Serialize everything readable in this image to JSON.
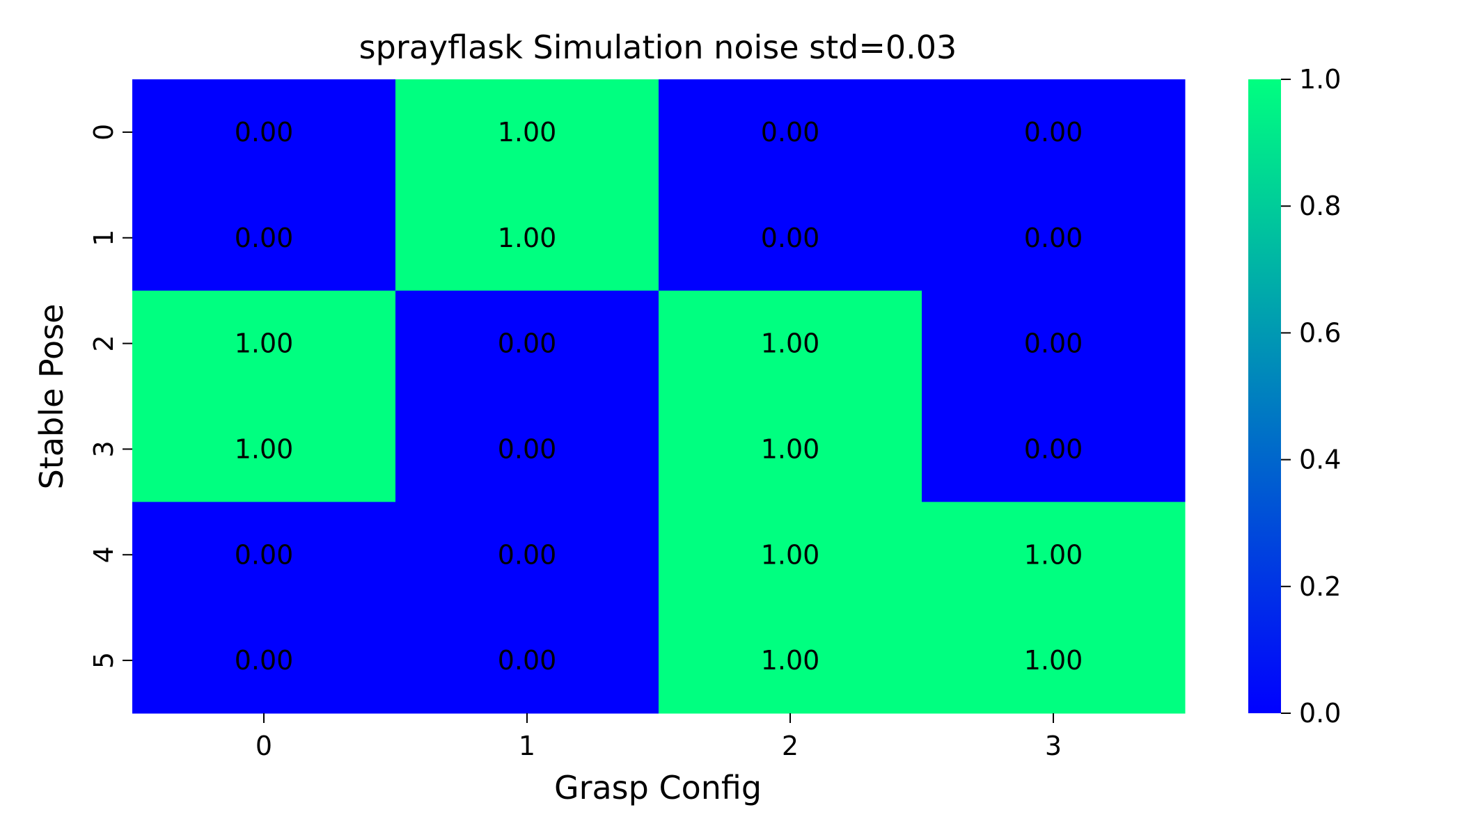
{
  "chart_data": {
    "type": "heatmap",
    "title": "sprayflask Simulation noise std=0.03",
    "xlabel": "Grasp Config",
    "ylabel": "Stable Pose",
    "x_categories": [
      "0",
      "1",
      "2",
      "3"
    ],
    "y_categories": [
      "0",
      "1",
      "2",
      "3",
      "4",
      "5"
    ],
    "values": [
      [
        0.0,
        1.0,
        0.0,
        0.0
      ],
      [
        0.0,
        1.0,
        0.0,
        0.0
      ],
      [
        1.0,
        0.0,
        1.0,
        0.0
      ],
      [
        1.0,
        0.0,
        1.0,
        0.0
      ],
      [
        0.0,
        0.0,
        1.0,
        1.0
      ],
      [
        0.0,
        0.0,
        1.0,
        1.0
      ]
    ],
    "cell_labels": [
      [
        "0.00",
        "1.00",
        "0.00",
        "0.00"
      ],
      [
        "0.00",
        "1.00",
        "0.00",
        "0.00"
      ],
      [
        "1.00",
        "0.00",
        "1.00",
        "0.00"
      ],
      [
        "1.00",
        "0.00",
        "1.00",
        "0.00"
      ],
      [
        "0.00",
        "0.00",
        "1.00",
        "1.00"
      ],
      [
        "0.00",
        "0.00",
        "1.00",
        "1.00"
      ]
    ],
    "colorbar": {
      "range": [
        0.0,
        1.0
      ],
      "ticks": [
        0.0,
        0.2,
        0.4,
        0.6,
        0.8,
        1.0
      ],
      "tick_labels": [
        "0.0",
        "0.2",
        "0.4",
        "0.6",
        "0.8",
        "1.0"
      ],
      "colormap": "winter",
      "color_min": "#0000ff",
      "color_max": "#00ff80"
    },
    "grid": false
  }
}
